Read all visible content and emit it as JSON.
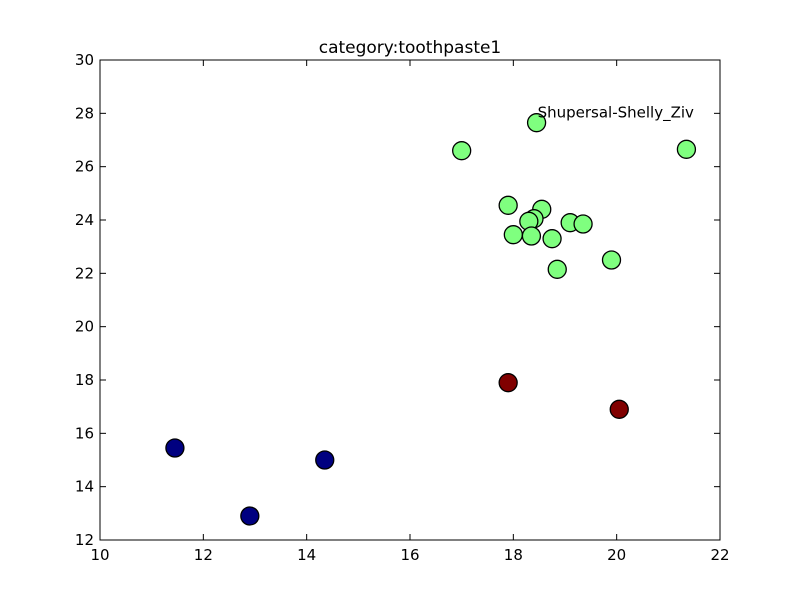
{
  "chart_data": {
    "type": "scatter",
    "title": "category:toothpaste1",
    "xlabel": "",
    "ylabel": "",
    "xlim": [
      10,
      22
    ],
    "ylim": [
      12,
      30
    ],
    "xticks": [
      10,
      12,
      14,
      16,
      18,
      20,
      22
    ],
    "yticks": [
      12,
      14,
      16,
      18,
      20,
      22,
      24,
      26,
      28,
      30
    ],
    "grid": false,
    "series": [
      {
        "color": "#7fff7f",
        "points": [
          {
            "x": 17.0,
            "y": 26.6
          },
          {
            "x": 18.45,
            "y": 27.65
          },
          {
            "x": 21.35,
            "y": 26.65
          },
          {
            "x": 17.9,
            "y": 24.55
          },
          {
            "x": 18.55,
            "y": 24.4
          },
          {
            "x": 18.4,
            "y": 24.05
          },
          {
            "x": 18.3,
            "y": 23.95
          },
          {
            "x": 19.1,
            "y": 23.9
          },
          {
            "x": 19.35,
            "y": 23.85
          },
          {
            "x": 18.0,
            "y": 23.45
          },
          {
            "x": 18.35,
            "y": 23.4
          },
          {
            "x": 18.75,
            "y": 23.3
          },
          {
            "x": 18.85,
            "y": 22.15
          },
          {
            "x": 19.9,
            "y": 22.5
          }
        ]
      },
      {
        "color": "#800000",
        "points": [
          {
            "x": 17.9,
            "y": 17.9
          },
          {
            "x": 20.05,
            "y": 16.9
          }
        ]
      },
      {
        "color": "#000080",
        "points": [
          {
            "x": 11.45,
            "y": 15.45
          },
          {
            "x": 14.35,
            "y": 15.0
          },
          {
            "x": 12.9,
            "y": 12.9
          }
        ]
      }
    ],
    "annotations": [
      {
        "text": "Shupersal-Shelly_Ziv",
        "x": 18.45,
        "y": 27.65
      }
    ]
  }
}
